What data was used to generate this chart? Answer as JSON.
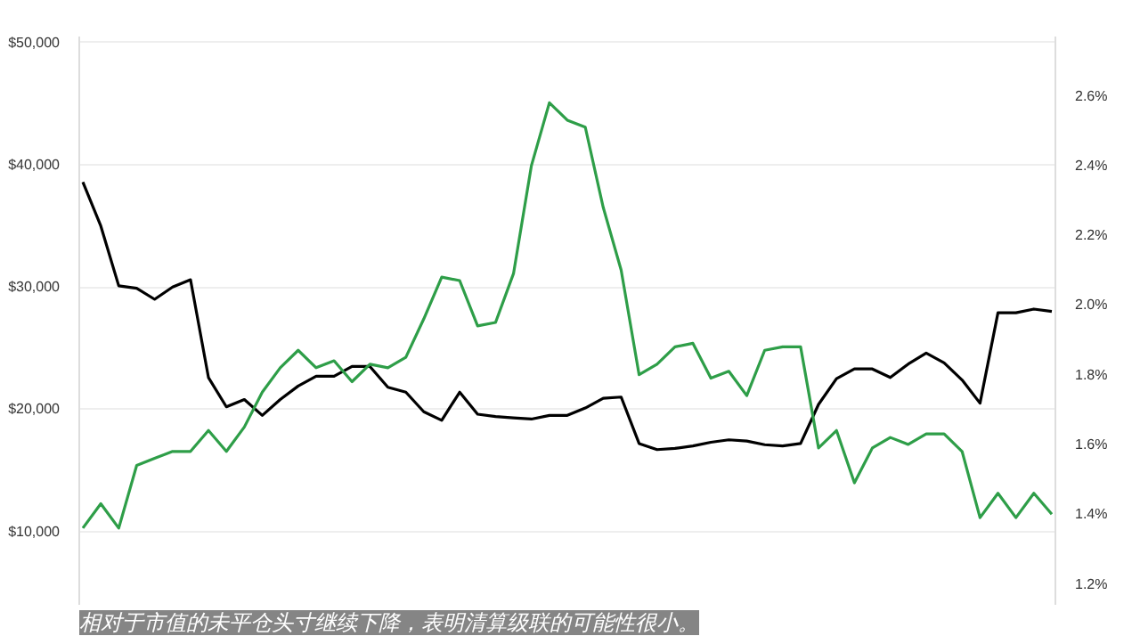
{
  "chart_data": {
    "type": "line",
    "annotations": [
      "相对于市值的未平仓头寸继续下降，表明清算级联的可能性很小。"
    ],
    "categories": [
      null,
      null,
      null,
      null,
      null,
      null,
      null,
      null,
      null,
      null,
      null,
      null,
      null,
      null,
      null,
      null,
      null,
      null,
      null,
      null,
      null,
      null,
      null,
      null,
      null,
      null,
      null,
      null,
      null,
      null,
      null,
      null,
      null,
      null,
      null,
      null,
      null,
      null,
      null,
      null,
      null,
      null,
      null,
      null,
      null,
      null,
      null,
      null,
      null,
      null,
      null,
      null,
      null,
      null,
      null
    ],
    "ylim": [
      4000,
      50500
    ],
    "yticks": [
      {
        "value": 10000,
        "label": "$10,000"
      },
      {
        "value": 20000,
        "label": "$20,000"
      },
      {
        "value": 30000,
        "label": "$30,000"
      },
      {
        "value": 40000,
        "label": "$40,000"
      },
      {
        "value": 50000,
        "label": "$50,000"
      }
    ],
    "y2lim": [
      1.14,
      2.77
    ],
    "y2ticks": [
      {
        "value": 1.2,
        "label": "1.2%"
      },
      {
        "value": 1.4,
        "label": "1.4%"
      },
      {
        "value": 1.6,
        "label": "1.6%"
      },
      {
        "value": 1.8,
        "label": "1.8%"
      },
      {
        "value": 2.0,
        "label": "2.0%"
      },
      {
        "value": 2.2,
        "label": "2.2%"
      },
      {
        "value": 2.4,
        "label": "2.4%"
      },
      {
        "value": 2.6,
        "label": "2.6%"
      }
    ],
    "grid": "y",
    "series": [
      {
        "color": "#000000",
        "values": [
          38600,
          35000,
          30100,
          29900,
          29000,
          30000,
          30600,
          22600,
          20200,
          20800,
          19500,
          20800,
          21900,
          22700,
          22700,
          23500,
          23500,
          21800,
          21400,
          19800,
          19100,
          21400,
          19600,
          19400,
          19300,
          19200,
          19500,
          19500,
          20100,
          20900,
          21000,
          17200,
          16700,
          16800,
          17000,
          17300,
          17500,
          17400,
          17100,
          17000,
          17200,
          20400,
          22500,
          23300,
          23300,
          22600,
          23700,
          24600,
          23800,
          22400,
          20500,
          27900,
          27900,
          28200,
          28000
        ]
      },
      {
        "color": "#2e9e48",
        "axis": "y2",
        "values": [
          1.36,
          1.43,
          1.36,
          1.54,
          1.56,
          1.58,
          1.58,
          1.64,
          1.58,
          1.65,
          1.75,
          1.82,
          1.87,
          1.82,
          1.84,
          1.78,
          1.83,
          1.82,
          1.85,
          1.96,
          2.08,
          2.07,
          1.94,
          1.95,
          2.09,
          2.4,
          2.58,
          2.53,
          2.51,
          2.28,
          2.1,
          1.8,
          1.83,
          1.88,
          1.89,
          1.79,
          1.81,
          1.74,
          1.87,
          1.88,
          1.88,
          1.59,
          1.64,
          1.49,
          1.59,
          1.62,
          1.6,
          1.63,
          1.63,
          1.58,
          1.39,
          1.46,
          1.39,
          1.46,
          1.4
        ]
      }
    ]
  }
}
